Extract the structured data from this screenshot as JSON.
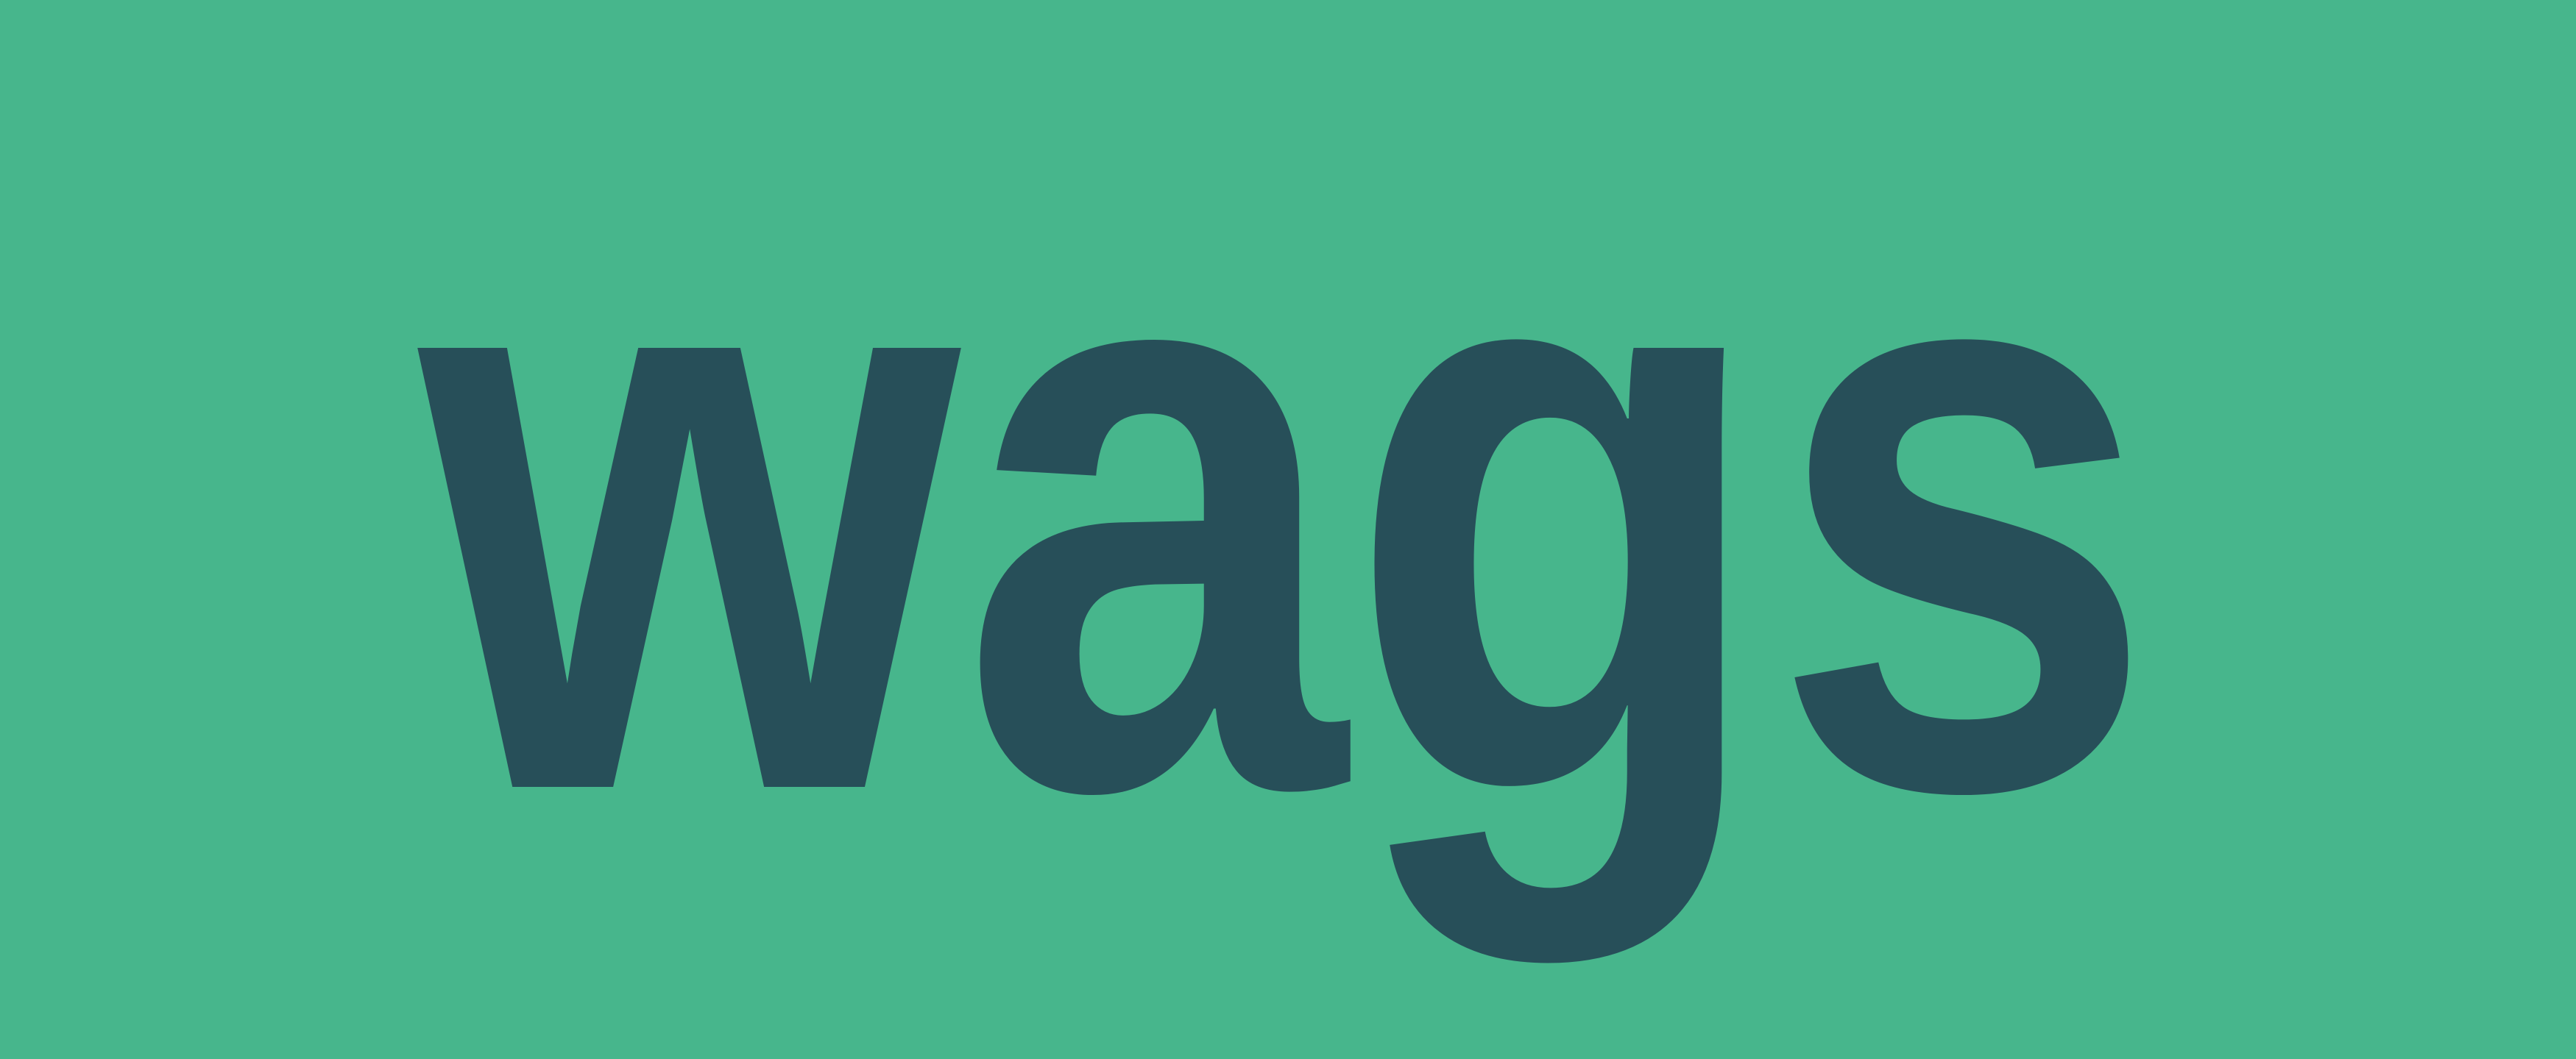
{
  "logo": {
    "wordmark": "wags",
    "colors": {
      "background": "#47b68c",
      "text": "#274f59"
    }
  }
}
